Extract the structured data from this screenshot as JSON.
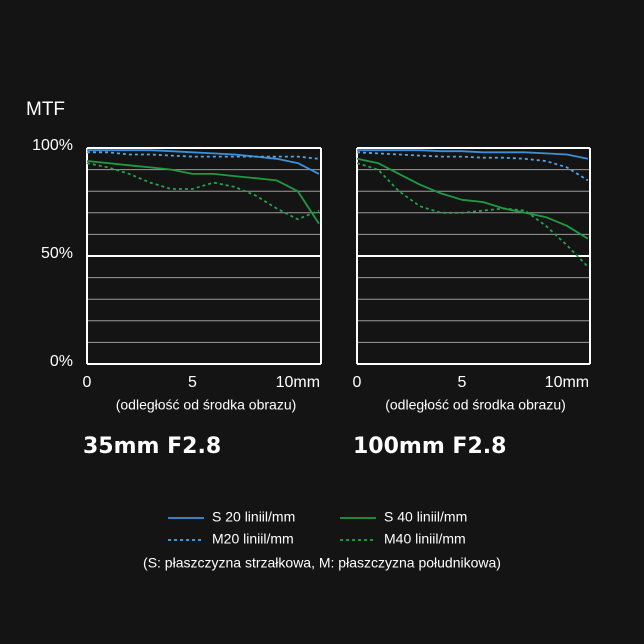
{
  "legend_note": "(S: płaszczyzna strzałkowa, M: płaszczyzna południkowa)",
  "chart_data": [
    {
      "type": "line",
      "title": "35mm F2.8",
      "y_label": "MTF",
      "x_label": "(odległość od środka obrazu)",
      "xlim": [
        0,
        11.1
      ],
      "ylim": [
        0,
        100
      ],
      "xticks": [
        0,
        5,
        {
          "value": 10,
          "label": "10mm"
        }
      ],
      "yticks": [
        {
          "value": 0,
          "label": "0%"
        },
        {
          "value": 50,
          "label": "50%"
        },
        {
          "value": 100,
          "label": "100%"
        }
      ],
      "minor_grid": [
        10,
        20,
        30,
        40,
        60,
        70,
        80,
        90
      ],
      "x": [
        0,
        1,
        2,
        3,
        4,
        5,
        6,
        7,
        8,
        9,
        10,
        11
      ],
      "series": [
        {
          "name": "S 20 liniil/mm",
          "color": "#3d8fd8",
          "dash": false,
          "values": [
            99,
            99,
            99,
            99,
            98.5,
            98,
            97.5,
            97,
            96,
            95,
            93,
            88
          ]
        },
        {
          "name": "M20 liniil/mm",
          "color": "#4aa6ec",
          "dash": true,
          "values": [
            98,
            98,
            97,
            97,
            96.5,
            96,
            96,
            96,
            96,
            96,
            96,
            95
          ]
        },
        {
          "name": "S 40 liniil/mm",
          "color": "#1f9a43",
          "dash": false,
          "values": [
            94,
            93,
            92,
            91,
            90,
            88,
            88,
            87,
            86,
            85,
            80,
            65
          ]
        },
        {
          "name": "M40 liniil/mm",
          "color": "#25a24a",
          "dash": true,
          "values": [
            93,
            91,
            88,
            84,
            81,
            81,
            84,
            82,
            78,
            72,
            67,
            71
          ]
        }
      ]
    },
    {
      "type": "line",
      "title": "100mm F2.8",
      "x_label": "(odległość od środka obrazu)",
      "xlim": [
        0,
        11.1
      ],
      "ylim": [
        0,
        100
      ],
      "xticks": [
        0,
        5,
        {
          "value": 10,
          "label": "10mm"
        }
      ],
      "major_grid": [
        0,
        50,
        100
      ],
      "minor_grid": [
        10,
        20,
        30,
        40,
        60,
        70,
        80,
        90
      ],
      "x": [
        0,
        1,
        2,
        3,
        4,
        5,
        6,
        7,
        8,
        9,
        10,
        11
      ],
      "series": [
        {
          "color": "#3d8fd8",
          "dash": false,
          "values": [
            99,
            99,
            99,
            99,
            98.5,
            98.5,
            98,
            98,
            98,
            97.5,
            97,
            95
          ]
        },
        {
          "color": "#4aa6ec",
          "dash": true,
          "values": [
            98,
            97.5,
            97,
            96.5,
            96,
            96,
            95.5,
            95.5,
            95,
            94,
            91,
            85
          ]
        },
        {
          "color": "#1f9a43",
          "dash": false,
          "values": [
            95,
            93,
            88,
            83,
            79,
            76,
            75,
            72,
            70,
            68,
            64,
            58
          ]
        },
        {
          "color": "#25a24a",
          "dash": true,
          "values": [
            93,
            90,
            80,
            73,
            70,
            70,
            71,
            72,
            71,
            64,
            55,
            45
          ]
        }
      ]
    }
  ]
}
